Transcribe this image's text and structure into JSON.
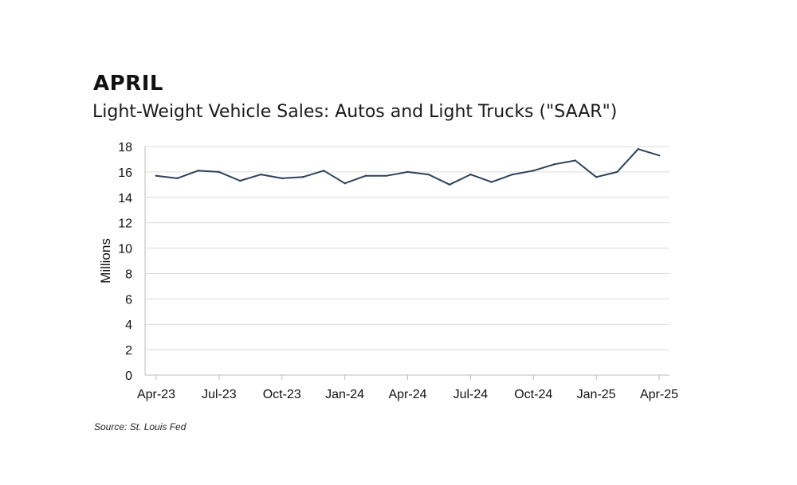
{
  "heading": "APRIL",
  "source": "Source: St. Louis Fed",
  "chart_data": {
    "type": "line",
    "title": "Light-Weight Vehicle Sales: Autos and Light Trucks (\"SAAR\")",
    "xlabel": "",
    "ylabel": "Millions",
    "ylim": [
      0,
      18
    ],
    "yticks": [
      0,
      2,
      4,
      6,
      8,
      10,
      12,
      14,
      16,
      18
    ],
    "grid": true,
    "legend": "none",
    "line_color": "#2e4259",
    "grid_color": "#dcdcdc",
    "x": [
      "Apr-23",
      "May-23",
      "Jun-23",
      "Jul-23",
      "Aug-23",
      "Sep-23",
      "Oct-23",
      "Nov-23",
      "Dec-23",
      "Jan-24",
      "Feb-24",
      "Mar-24",
      "Apr-24",
      "May-24",
      "Jun-24",
      "Jul-24",
      "Aug-24",
      "Sep-24",
      "Oct-24",
      "Nov-24",
      "Dec-24",
      "Jan-25",
      "Feb-25",
      "Mar-25",
      "Apr-25"
    ],
    "xtick_labels": [
      "Apr-23",
      "Jul-23",
      "Oct-23",
      "Jan-24",
      "Apr-24",
      "Jul-24",
      "Oct-24",
      "Jan-25",
      "Apr-25"
    ],
    "series": [
      {
        "name": "Light-Weight Vehicle Sales",
        "values": [
          15.7,
          15.5,
          16.1,
          16.0,
          15.3,
          15.8,
          15.5,
          15.6,
          16.1,
          15.1,
          15.7,
          15.7,
          16.0,
          15.8,
          15.0,
          15.8,
          15.2,
          15.8,
          16.1,
          16.6,
          16.9,
          15.6,
          16.0,
          17.8,
          17.3
        ]
      }
    ]
  }
}
